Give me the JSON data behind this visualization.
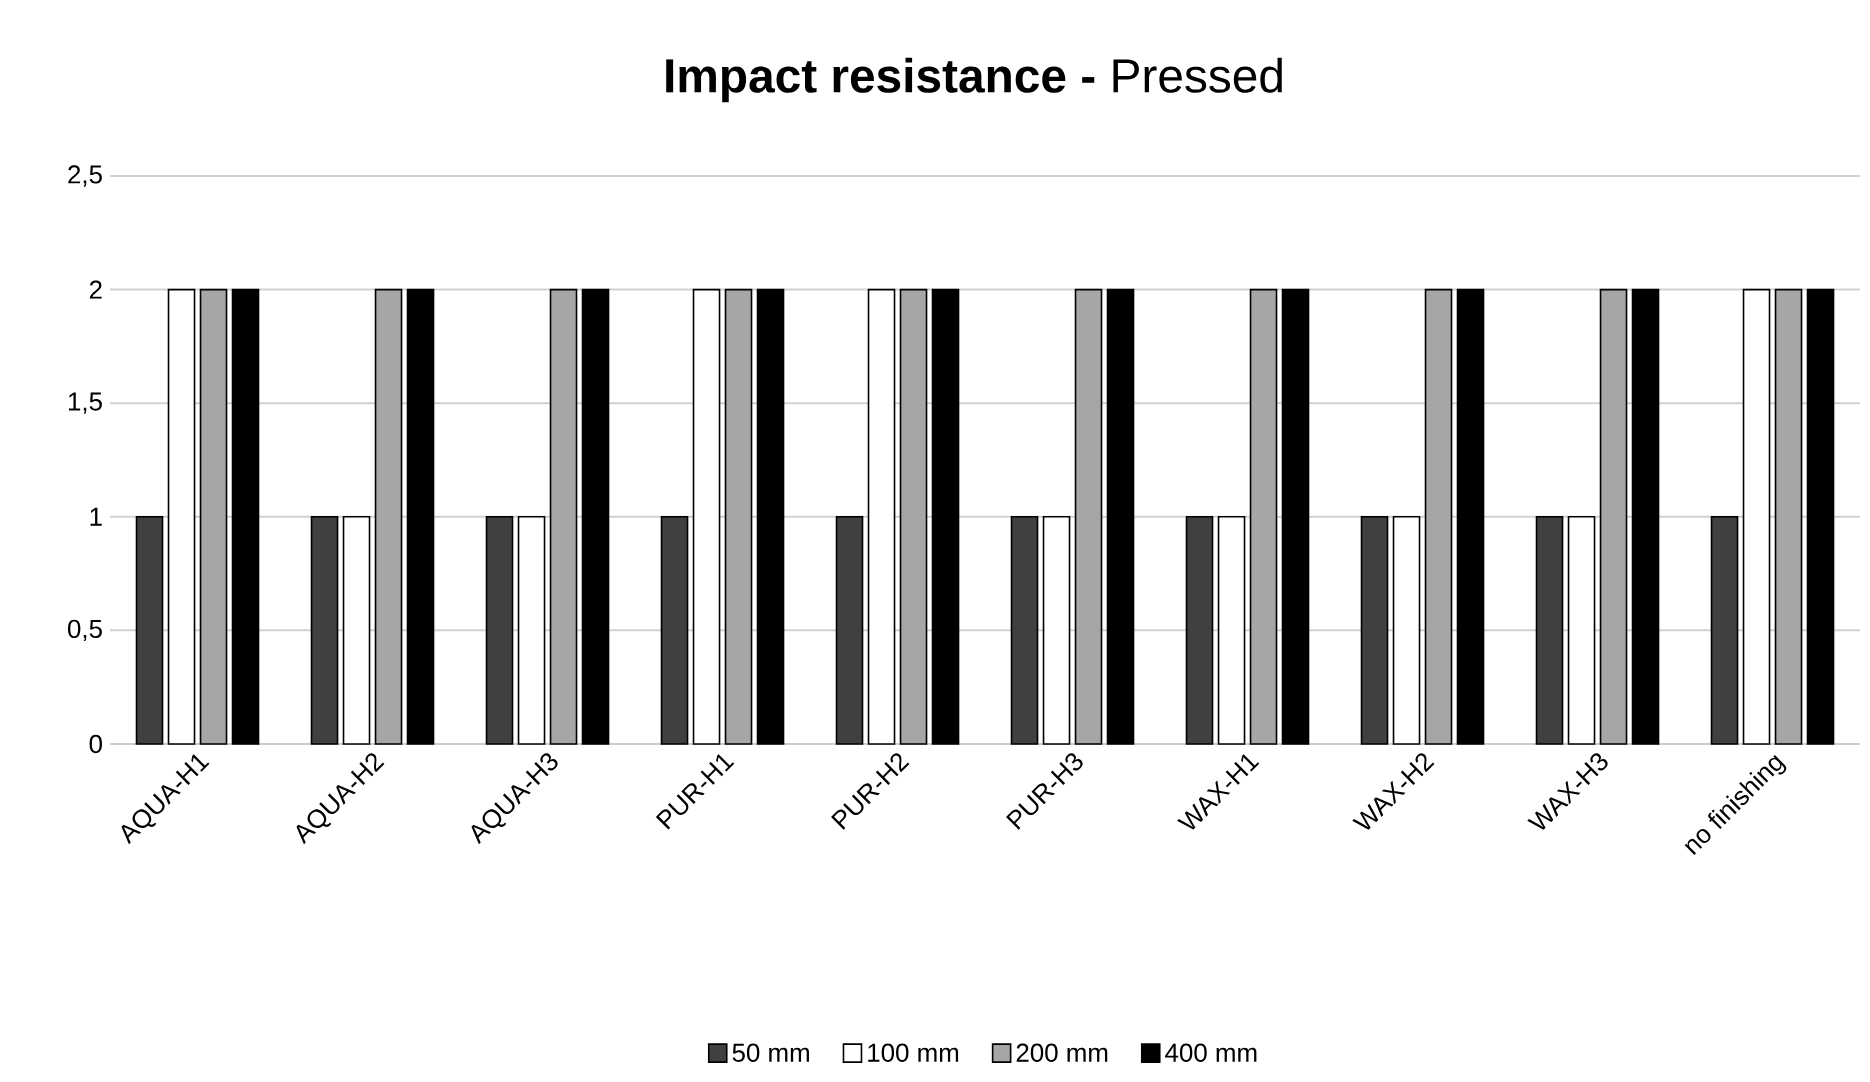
{
  "chart_data": {
    "type": "bar",
    "title": "**Impact resistance -** Pressed",
    "categories": [
      "AQUA-H1",
      "AQUA-H2",
      "AQUA-H3",
      "PUR-H1",
      "PUR-H2",
      "PUR-H3",
      "WAX-H1",
      "WAX-H2",
      "WAX-H3",
      "no finishing"
    ],
    "series": [
      {
        "name": "50 mm",
        "color": "#404040",
        "values": [
          1,
          1,
          1,
          1,
          1,
          1,
          1,
          1,
          1,
          1
        ]
      },
      {
        "name": "100 mm",
        "color": "#ffffff",
        "values": [
          2,
          1,
          1,
          2,
          2,
          1,
          1,
          1,
          1,
          2
        ]
      },
      {
        "name": "200 mm",
        "color": "#a6a6a6",
        "values": [
          2,
          2,
          2,
          2,
          2,
          2,
          2,
          2,
          2,
          2
        ]
      },
      {
        "name": "400 mm",
        "color": "#000000",
        "values": [
          2,
          2,
          2,
          2,
          2,
          2,
          2,
          2,
          2,
          2
        ]
      }
    ],
    "ylim": [
      0,
      2.5
    ],
    "yticks": [
      0,
      {
        "value": 0.5,
        "label": "0,5"
      },
      1,
      {
        "value": 1.5,
        "label": "1,5"
      },
      2,
      {
        "value": 2.5,
        "label": "2,5"
      }
    ],
    "grid": "y",
    "legend": "bottom"
  }
}
